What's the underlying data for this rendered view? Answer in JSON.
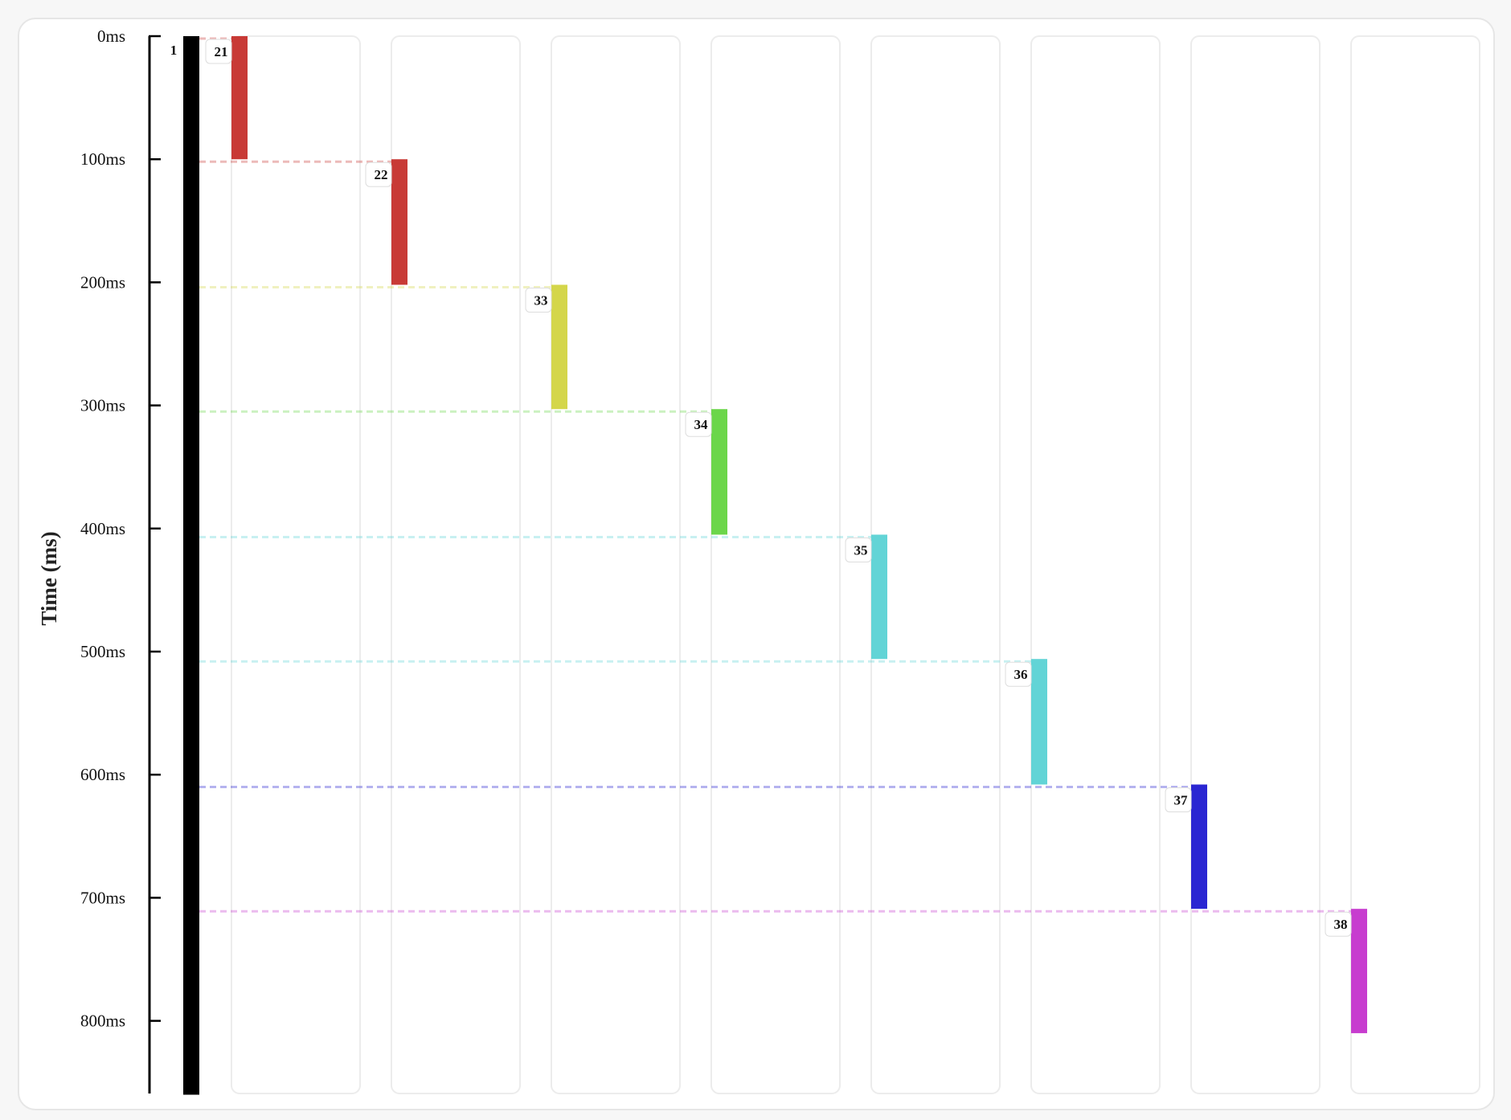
{
  "chart_data": {
    "type": "bar",
    "subtype": "timeline-gantt",
    "title": "",
    "ylabel": "Time (ms)",
    "xlabel": "",
    "ylim": [
      0,
      860
    ],
    "y_ticks": [
      0,
      100,
      200,
      300,
      400,
      500,
      600,
      700,
      800
    ],
    "y_tick_suffix": "ms",
    "y_direction": "down",
    "grid": false,
    "lanes": 9,
    "bars": [
      {
        "label": "1",
        "lane": 0,
        "start": 0,
        "end": 860,
        "color": "#000000"
      },
      {
        "label": "21",
        "lane": 1,
        "start": 0,
        "end": 100,
        "color": "#c83a36"
      },
      {
        "label": "22",
        "lane": 2,
        "start": 100,
        "end": 202,
        "color": "#c83a36"
      },
      {
        "label": "33",
        "lane": 3,
        "start": 202,
        "end": 303,
        "color": "#d4d64a"
      },
      {
        "label": "34",
        "lane": 4,
        "start": 303,
        "end": 405,
        "color": "#6bd64a"
      },
      {
        "label": "35",
        "lane": 5,
        "start": 405,
        "end": 506,
        "color": "#62d4d6"
      },
      {
        "label": "36",
        "lane": 6,
        "start": 506,
        "end": 608,
        "color": "#62d4d6"
      },
      {
        "label": "37",
        "lane": 7,
        "start": 608,
        "end": 709,
        "color": "#2a26d2"
      },
      {
        "label": "38",
        "lane": 8,
        "start": 709,
        "end": 810,
        "color": "#c73ccf"
      }
    ]
  }
}
